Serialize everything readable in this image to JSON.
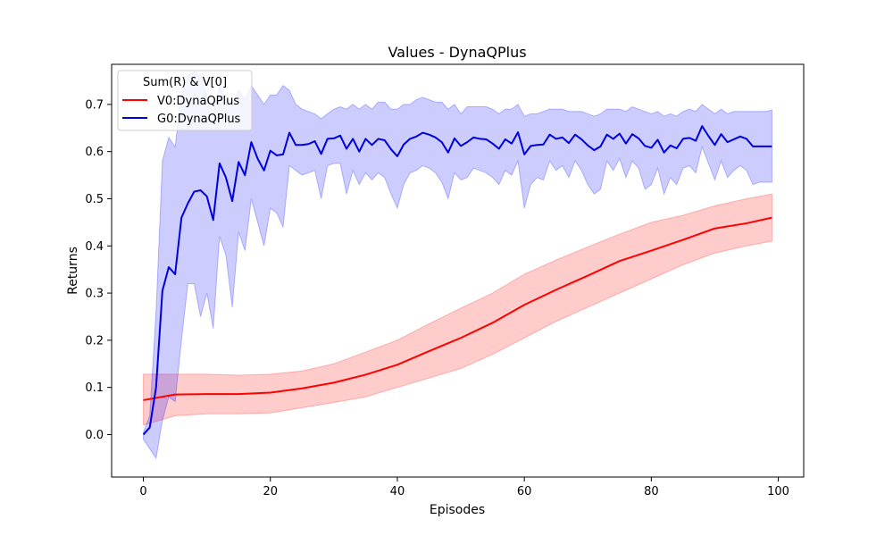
{
  "chart_data": {
    "type": "line",
    "title": "Values - DynaQPlus",
    "xlabel": "Episodes",
    "ylabel": "Returns",
    "xlim": [
      -5,
      104
    ],
    "ylim": [
      -0.09,
      0.785
    ],
    "xticks": [
      0,
      20,
      40,
      60,
      80,
      100
    ],
    "yticks": [
      0.0,
      0.1,
      0.2,
      0.3,
      0.4,
      0.5,
      0.6,
      0.7
    ],
    "ytick_labels": [
      "0.0",
      "0.1",
      "0.2",
      "0.3",
      "0.4",
      "0.5",
      "0.6",
      "0.7"
    ],
    "grid": false,
    "legend": {
      "title": "Sum(R) & V[0]",
      "placement": "top-left",
      "entries": [
        "V0:DynaQPlus",
        "G0:DynaQPlus"
      ]
    },
    "series": [
      {
        "name": "V0:DynaQPlus",
        "color": "#ff0000",
        "band_color": "#ff0000",
        "band_opacity": 0.2,
        "x": [
          0,
          5,
          10,
          15,
          20,
          25,
          30,
          35,
          40,
          45,
          50,
          55,
          60,
          65,
          70,
          75,
          80,
          85,
          90,
          95,
          99
        ],
        "y": [
          0.073,
          0.085,
          0.086,
          0.086,
          0.089,
          0.098,
          0.11,
          0.127,
          0.148,
          0.177,
          0.205,
          0.237,
          0.275,
          0.307,
          0.337,
          0.368,
          0.39,
          0.413,
          0.437,
          0.448,
          0.46
        ],
        "upper": [
          0.128,
          0.128,
          0.128,
          0.126,
          0.128,
          0.135,
          0.15,
          0.175,
          0.2,
          0.235,
          0.268,
          0.3,
          0.34,
          0.37,
          0.398,
          0.425,
          0.45,
          0.465,
          0.485,
          0.5,
          0.51
        ],
        "lower": [
          0.02,
          0.04,
          0.044,
          0.044,
          0.046,
          0.057,
          0.068,
          0.08,
          0.1,
          0.12,
          0.14,
          0.17,
          0.205,
          0.24,
          0.27,
          0.3,
          0.33,
          0.36,
          0.385,
          0.4,
          0.41
        ]
      },
      {
        "name": "G0:DynaQPlus",
        "color": "#0000dd",
        "band_color": "#0000ff",
        "band_opacity": 0.2,
        "x": [
          0,
          1,
          2,
          3,
          4,
          5,
          6,
          7,
          8,
          9,
          10,
          11,
          12,
          13,
          14,
          15,
          16,
          17,
          18,
          19,
          20,
          21,
          22,
          23,
          24,
          25,
          26,
          27,
          28,
          29,
          30,
          31,
          32,
          33,
          34,
          35,
          36,
          37,
          38,
          39,
          40,
          41,
          42,
          43,
          44,
          45,
          46,
          47,
          48,
          49,
          50,
          51,
          52,
          53,
          54,
          55,
          56,
          57,
          58,
          59,
          60,
          61,
          62,
          63,
          64,
          65,
          66,
          67,
          68,
          69,
          70,
          71,
          72,
          73,
          74,
          75,
          76,
          77,
          78,
          79,
          80,
          81,
          82,
          83,
          84,
          85,
          86,
          87,
          88,
          89,
          90,
          91,
          92,
          93,
          94,
          95,
          96,
          97,
          98,
          99
        ],
        "y": [
          0.0,
          0.015,
          0.1,
          0.305,
          0.355,
          0.34,
          0.46,
          0.49,
          0.515,
          0.518,
          0.505,
          0.455,
          0.575,
          0.545,
          0.495,
          0.578,
          0.55,
          0.62,
          0.585,
          0.56,
          0.602,
          0.592,
          0.594,
          0.64,
          0.614,
          0.614,
          0.616,
          0.622,
          0.595,
          0.627,
          0.628,
          0.634,
          0.606,
          0.627,
          0.6,
          0.627,
          0.614,
          0.627,
          0.624,
          0.605,
          0.59,
          0.615,
          0.627,
          0.632,
          0.64,
          0.636,
          0.63,
          0.62,
          0.598,
          0.628,
          0.612,
          0.62,
          0.63,
          0.627,
          0.626,
          0.617,
          0.606,
          0.626,
          0.617,
          0.641,
          0.594,
          0.612,
          0.614,
          0.615,
          0.636,
          0.627,
          0.63,
          0.618,
          0.636,
          0.626,
          0.613,
          0.603,
          0.611,
          0.636,
          0.627,
          0.638,
          0.617,
          0.637,
          0.628,
          0.612,
          0.608,
          0.625,
          0.598,
          0.613,
          0.607,
          0.627,
          0.629,
          0.623,
          0.654,
          0.633,
          0.614,
          0.637,
          0.62,
          0.626,
          0.632,
          0.627,
          0.611,
          0.611,
          0.611,
          0.611
        ],
        "upper": [
          0.005,
          0.04,
          0.26,
          0.58,
          0.63,
          0.61,
          0.72,
          0.76,
          0.77,
          0.76,
          0.72,
          0.68,
          0.74,
          0.71,
          0.7,
          0.73,
          0.71,
          0.74,
          0.72,
          0.7,
          0.72,
          0.72,
          0.74,
          0.73,
          0.7,
          0.69,
          0.685,
          0.68,
          0.67,
          0.68,
          0.69,
          0.695,
          0.69,
          0.7,
          0.69,
          0.7,
          0.69,
          0.705,
          0.705,
          0.69,
          0.69,
          0.7,
          0.7,
          0.71,
          0.715,
          0.71,
          0.705,
          0.705,
          0.69,
          0.7,
          0.68,
          0.695,
          0.695,
          0.695,
          0.695,
          0.69,
          0.68,
          0.69,
          0.69,
          0.7,
          0.675,
          0.68,
          0.68,
          0.685,
          0.69,
          0.69,
          0.69,
          0.685,
          0.685,
          0.685,
          0.68,
          0.675,
          0.68,
          0.69,
          0.69,
          0.69,
          0.685,
          0.695,
          0.69,
          0.685,
          0.68,
          0.685,
          0.675,
          0.68,
          0.675,
          0.685,
          0.69,
          0.685,
          0.7,
          0.69,
          0.68,
          0.69,
          0.68,
          0.685,
          0.685,
          0.685,
          0.685,
          0.685,
          0.685,
          0.688
        ],
        "lower": [
          -0.01,
          -0.03,
          -0.05,
          0.03,
          0.08,
          0.07,
          0.2,
          0.32,
          0.32,
          0.25,
          0.3,
          0.225,
          0.42,
          0.38,
          0.27,
          0.43,
          0.39,
          0.5,
          0.45,
          0.4,
          0.48,
          0.47,
          0.44,
          0.57,
          0.56,
          0.55,
          0.555,
          0.56,
          0.5,
          0.57,
          0.575,
          0.575,
          0.51,
          0.56,
          0.53,
          0.555,
          0.54,
          0.555,
          0.545,
          0.51,
          0.48,
          0.53,
          0.555,
          0.56,
          0.57,
          0.565,
          0.555,
          0.535,
          0.5,
          0.555,
          0.54,
          0.545,
          0.565,
          0.56,
          0.555,
          0.545,
          0.53,
          0.56,
          0.55,
          0.58,
          0.48,
          0.53,
          0.545,
          0.54,
          0.58,
          0.56,
          0.57,
          0.545,
          0.58,
          0.56,
          0.53,
          0.51,
          0.52,
          0.58,
          0.56,
          0.585,
          0.545,
          0.58,
          0.565,
          0.52,
          0.53,
          0.565,
          0.51,
          0.545,
          0.53,
          0.565,
          0.57,
          0.555,
          0.61,
          0.575,
          0.54,
          0.58,
          0.545,
          0.56,
          0.57,
          0.56,
          0.53,
          0.535,
          0.535,
          0.535
        ]
      }
    ]
  }
}
